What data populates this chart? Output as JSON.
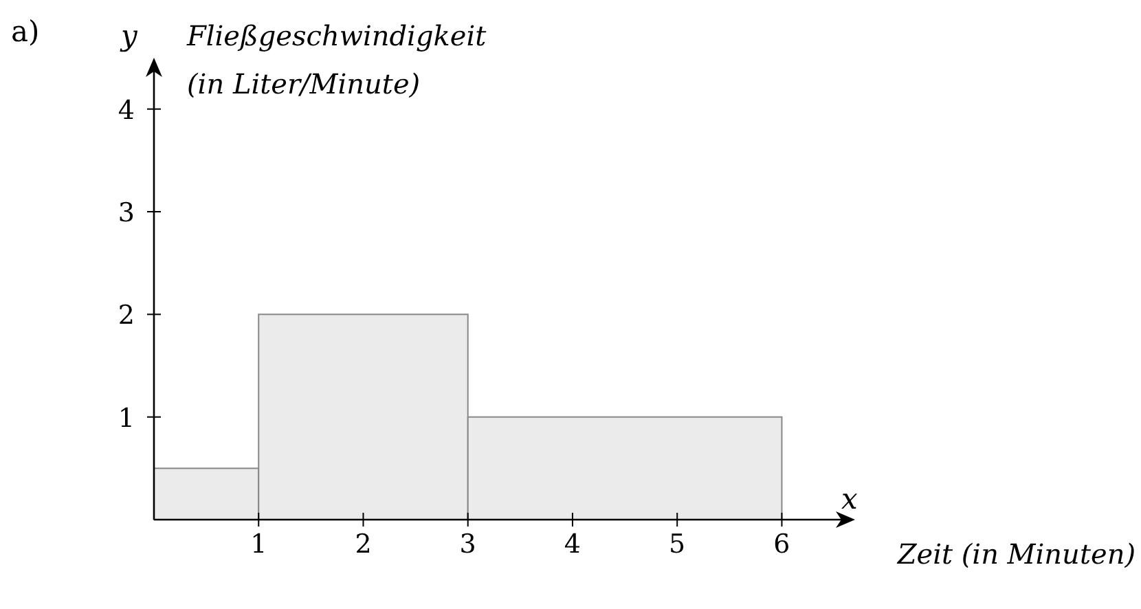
{
  "chart_data": {
    "type": "histogram",
    "bins": [
      0,
      1,
      3,
      6
    ],
    "values": [
      0.5,
      2,
      1
    ],
    "color": "#ebebeb",
    "xlim": [
      0,
      6.7
    ],
    "ylim": [
      0,
      4.5
    ],
    "xticks": [
      1,
      2,
      3,
      4,
      5,
      6
    ],
    "yticks": [
      1,
      2,
      3,
      4
    ],
    "xlabel": "Zeit (in Minuten)",
    "ylabel": "Fließgeschwindigkeit\n(in Liter/Minute)",
    "annotations": [
      "a)",
      "x",
      "y"
    ],
    "grid": false
  }
}
